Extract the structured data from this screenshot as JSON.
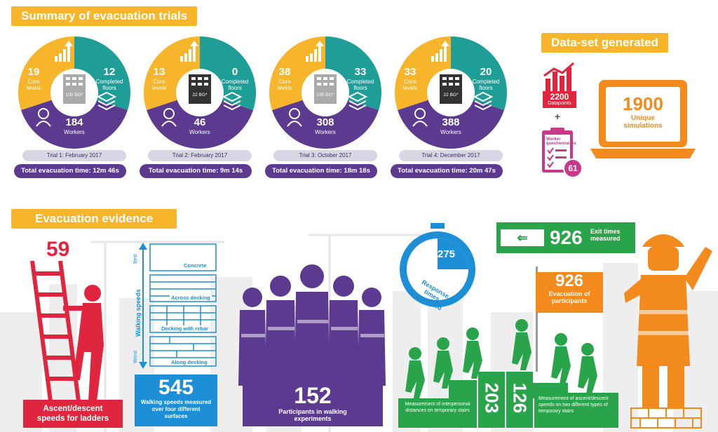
{
  "summary_title": "Summary of evacuation trials",
  "dataset_title": "Data-set generated",
  "evidence_title": "Evacuation evidence",
  "labels": {
    "core_levels": "Core levels",
    "completed_floors": "Completed floors",
    "workers": "Workers"
  },
  "trials": [
    {
      "core": "19",
      "floors": "12",
      "workers": "184",
      "building": "100 BG*",
      "label": "Trial 1: February 2017",
      "time": "Total evacuation time: 12m 46s"
    },
    {
      "core": "13",
      "floors": "0",
      "workers": "46",
      "building": "22 BG*",
      "label": "Trial 2: February 2017",
      "time": "Total evacuation time: 9m 14s"
    },
    {
      "core": "38",
      "floors": "33",
      "workers": "308",
      "building": "100 BG*",
      "label": "Trial 3: October 2017",
      "time": "Total evacuation time: 18m 18s"
    },
    {
      "core": "33",
      "floors": "20",
      "workers": "388",
      "building": "22 BG*",
      "label": "Trial 4: December 2017",
      "time": "Total evacuation time: 20m 47s"
    }
  ],
  "dataset": {
    "datapoints_value": "2200",
    "datapoints_label": "Datapoints",
    "plus": "+",
    "questionnaires_label": "Worker questionnaires",
    "questionnaires_value": "61",
    "simulations_value": "1900",
    "simulations_label": "Unique simulations"
  },
  "evidence": {
    "ladder_value": "59",
    "ladder_label": "Ascent/descent speeds for ladders",
    "surfaces": {
      "best": "Best",
      "worst": "Worst",
      "axis": "Walking speeds",
      "items": [
        "Concrete",
        "Across decking",
        "Decking with rebar",
        "Along decking"
      ]
    },
    "walking_value": "545",
    "walking_label": "Walking speeds measured over four different surfaces",
    "participants_value": "152",
    "participants_label": "Participants in walking experiments",
    "response_value": "275",
    "response_label": "Response times measured",
    "exit_value": "926",
    "exit_label": "Exit times measured",
    "evac_value": "926",
    "evac_label": "Evacuation of participants",
    "interpersonal_value": "203",
    "interpersonal_label": "Measurement of interpersonal distances on temporary stairs",
    "stairs_value": "126",
    "stairs_label": "Measurement of ascent/descent speeds on two different types of temporary stairs"
  },
  "colors": {
    "yellow": "#f7b52c",
    "teal": "#1f9e98",
    "purple": "#5c3a8f",
    "red": "#e0263f",
    "blue": "#1c8fd6",
    "green": "#2aa44a",
    "orange": "#f28a1e",
    "magenta": "#c6398b"
  }
}
